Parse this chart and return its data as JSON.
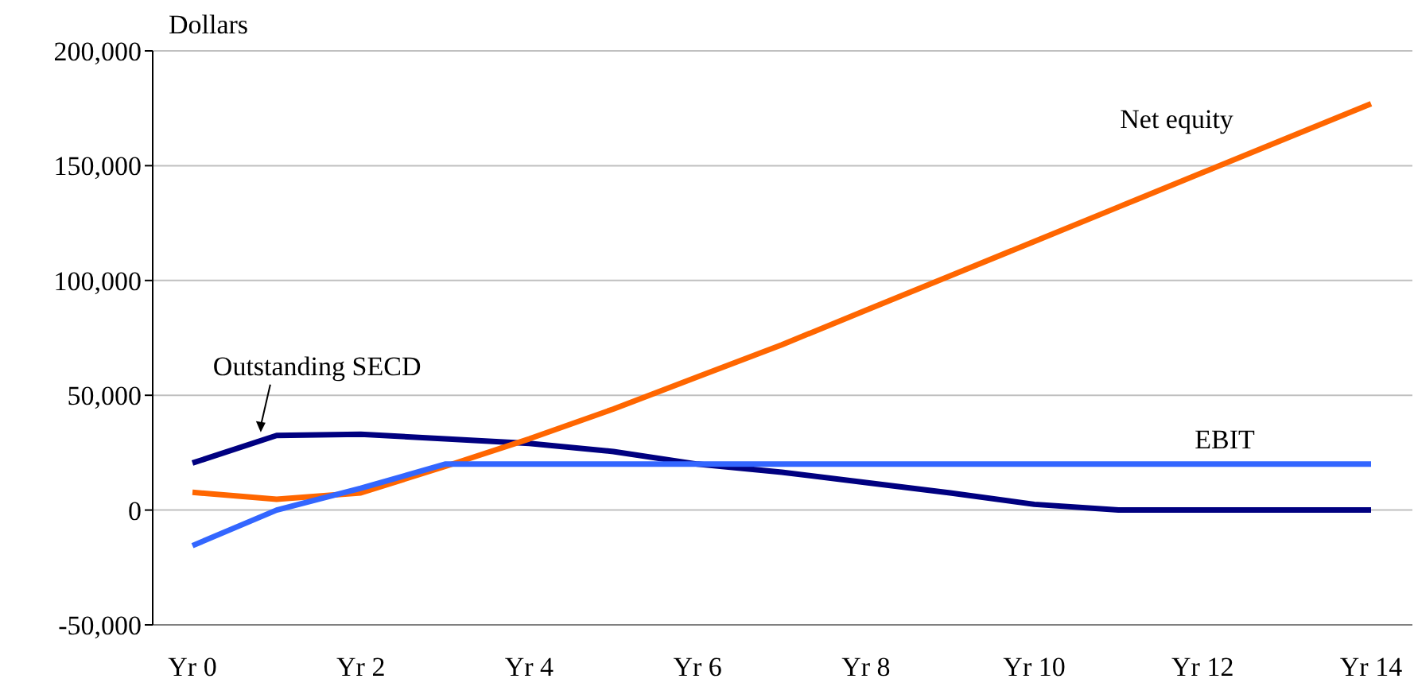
{
  "chart_data": {
    "type": "line",
    "ylabel": "Dollars",
    "categories": [
      "Yr 0",
      null,
      "Yr 2",
      null,
      "Yr 4",
      null,
      "Yr 6",
      null,
      "Yr 8",
      null,
      "Yr 10",
      null,
      "Yr 12",
      null,
      "Yr 14"
    ],
    "series": [
      {
        "name": "Outstanding SECD",
        "color": "#000080",
        "values": [
          20500,
          32500,
          33000,
          31000,
          29000,
          25500,
          20000,
          16500,
          12000,
          7500,
          2500,
          0,
          0,
          0,
          0
        ]
      },
      {
        "name": "Net equity",
        "color": "#ff6600",
        "values": [
          7700,
          4700,
          7500,
          19000,
          31000,
          44000,
          58000,
          72000,
          87000,
          102000,
          117000,
          132000,
          147000,
          162000,
          177000
        ]
      },
      {
        "name": "EBIT",
        "color": "#3366ff",
        "values": [
          -15500,
          0,
          9500,
          20000,
          20000,
          20000,
          20000,
          20000,
          20000,
          20000,
          20000,
          20000,
          20000,
          20000,
          20000
        ]
      }
    ],
    "ylim": [
      -50000,
      200000
    ],
    "yticks": [
      {
        "value": -50000,
        "label": "-50,000"
      },
      0,
      {
        "value": 50000,
        "label": "50,000"
      },
      {
        "value": 100000,
        "label": "100,000"
      },
      {
        "value": 150000,
        "label": "150,000"
      },
      {
        "value": 200000,
        "label": "200,000"
      }
    ],
    "grid": "y",
    "legend": false,
    "marker": "none",
    "line_style": "solid"
  }
}
